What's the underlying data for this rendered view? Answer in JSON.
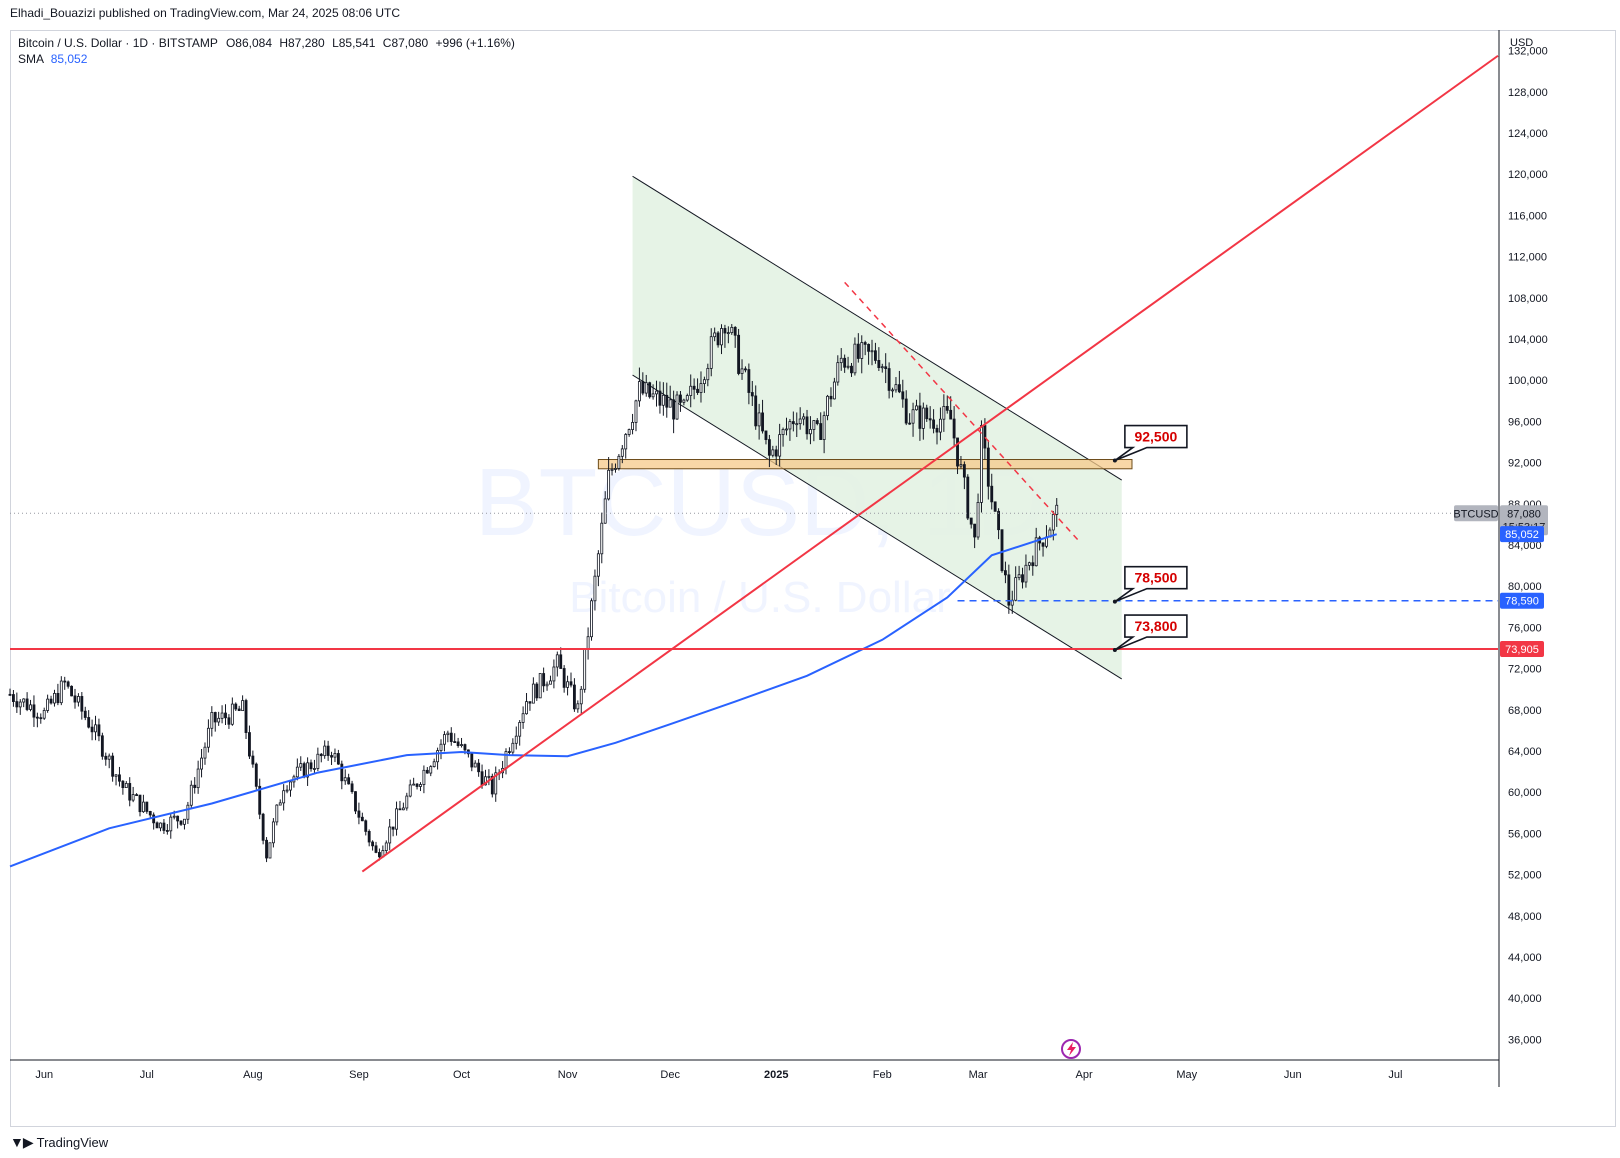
{
  "header": {
    "published": "Elhadi_Bouazizi published on TradingView.com, Mar 24, 2025 08:06 UTC"
  },
  "legend": {
    "symbol": "Bitcoin / U.S. Dollar · 1D · BITSTAMP",
    "open": "O86,084",
    "high": "H87,280",
    "low": "L85,541",
    "close": "C87,080",
    "change": "+996 (+1.16%)",
    "sma_label": "SMA",
    "sma_value": "85,052"
  },
  "watermark": {
    "line1": "BTCUSD, 1D",
    "line2": "Bitcoin / U.S. Dollar"
  },
  "footer": {
    "brand": "TradingView"
  },
  "colors": {
    "bull": "#131722",
    "bear": "#131722",
    "sma": "#2962ff",
    "trend_red": "#f23645",
    "channel_fill": "#e3f2e3",
    "zone": "#f5c98a"
  },
  "chart_data": {
    "type": "candlestick",
    "currency": "USD",
    "timeframe": "1D",
    "x_range": [
      "2024-05-22",
      "2025-07-31"
    ],
    "y_range": [
      34000,
      134000
    ],
    "x_ticks": [
      {
        "label": "Jun",
        "date": "2024-06-01"
      },
      {
        "label": "Jul",
        "date": "2024-07-01"
      },
      {
        "label": "Aug",
        "date": "2024-08-01"
      },
      {
        "label": "Sep",
        "date": "2024-09-01"
      },
      {
        "label": "Oct",
        "date": "2024-10-01"
      },
      {
        "label": "Nov",
        "date": "2024-11-01"
      },
      {
        "label": "Dec",
        "date": "2024-12-01"
      },
      {
        "label": "2025",
        "date": "2025-01-01"
      },
      {
        "label": "Feb",
        "date": "2025-02-01"
      },
      {
        "label": "Mar",
        "date": "2025-03-01"
      },
      {
        "label": "Apr",
        "date": "2025-04-01"
      },
      {
        "label": "May",
        "date": "2025-05-01"
      },
      {
        "label": "Jun",
        "date": "2025-06-01"
      },
      {
        "label": "Jul",
        "date": "2025-07-01"
      }
    ],
    "y_ticks": [
      {
        "label": "132,000",
        "value": 132000
      },
      {
        "label": "128,000",
        "value": 128000
      },
      {
        "label": "124,000",
        "value": 124000
      },
      {
        "label": "120,000",
        "value": 120000
      },
      {
        "label": "116,000",
        "value": 116000
      },
      {
        "label": "112,000",
        "value": 112000
      },
      {
        "label": "108,000",
        "value": 108000
      },
      {
        "label": "104,000",
        "value": 104000
      },
      {
        "label": "100,000",
        "value": 100000
      },
      {
        "label": "96,000",
        "value": 96000
      },
      {
        "label": "92,000",
        "value": 92000
      },
      {
        "label": "88,000",
        "value": 88000
      },
      {
        "label": "84,000",
        "value": 84000
      },
      {
        "label": "80,000",
        "value": 80000
      },
      {
        "label": "76,000",
        "value": 76000
      },
      {
        "label": "72,000",
        "value": 72000
      },
      {
        "label": "68,000",
        "value": 68000
      },
      {
        "label": "64,000",
        "value": 64000
      },
      {
        "label": "60,000",
        "value": 60000
      },
      {
        "label": "56,000",
        "value": 56000
      },
      {
        "label": "52,000",
        "value": 52000
      },
      {
        "label": "48,000",
        "value": 48000
      },
      {
        "label": "44,000",
        "value": 44000
      },
      {
        "label": "40,000",
        "value": 40000
      },
      {
        "label": "36,000",
        "value": 36000
      }
    ],
    "close_path": [
      [
        "2024-05-22",
        69500
      ],
      [
        "2024-06-01",
        67600
      ],
      [
        "2024-06-07",
        70500
      ],
      [
        "2024-06-15",
        66300
      ],
      [
        "2024-06-24",
        60500
      ],
      [
        "2024-07-05",
        56800
      ],
      [
        "2024-07-12",
        57700
      ],
      [
        "2024-07-20",
        66800
      ],
      [
        "2024-07-29",
        68000
      ],
      [
        "2024-08-05",
        54000
      ],
      [
        "2024-08-10",
        60800
      ],
      [
        "2024-08-24",
        64100
      ],
      [
        "2024-09-06",
        53900
      ],
      [
        "2024-09-15",
        59400
      ],
      [
        "2024-09-27",
        65800
      ],
      [
        "2024-10-10",
        60300
      ],
      [
        "2024-10-20",
        69000
      ],
      [
        "2024-10-29",
        72400
      ],
      [
        "2024-11-04",
        68000
      ],
      [
        "2024-11-13",
        90500
      ],
      [
        "2024-11-22",
        98900
      ],
      [
        "2024-12-05",
        96900
      ],
      [
        "2024-12-17",
        106100
      ],
      [
        "2024-12-30",
        92500
      ],
      [
        "2025-01-07",
        96900
      ],
      [
        "2025-01-13",
        94500
      ],
      [
        "2025-01-20",
        102000
      ],
      [
        "2025-01-31",
        102400
      ],
      [
        "2025-02-09",
        96500
      ],
      [
        "2025-02-21",
        96200
      ],
      [
        "2025-02-28",
        84300
      ],
      [
        "2025-03-02",
        94300
      ],
      [
        "2025-03-10",
        78500
      ],
      [
        "2025-03-16",
        82600
      ],
      [
        "2025-03-24",
        87080
      ]
    ],
    "sma": {
      "name": "SMA",
      "value": 85052,
      "points": [
        [
          "2024-05-22",
          52800
        ],
        [
          "2024-06-20",
          56500
        ],
        [
          "2024-07-20",
          58900
        ],
        [
          "2024-08-20",
          61900
        ],
        [
          "2024-09-15",
          63600
        ],
        [
          "2024-10-01",
          63900
        ],
        [
          "2024-10-15",
          63600
        ],
        [
          "2024-11-01",
          63500
        ],
        [
          "2024-11-15",
          64800
        ],
        [
          "2024-12-01",
          66600
        ],
        [
          "2024-12-20",
          68800
        ],
        [
          "2025-01-10",
          71300
        ],
        [
          "2025-02-01",
          74800
        ],
        [
          "2025-02-20",
          78900
        ],
        [
          "2025-03-05",
          83000
        ],
        [
          "2025-03-24",
          85052
        ]
      ]
    },
    "annotations": {
      "channel_upper": {
        "start": [
          "2024-11-20",
          119800
        ],
        "end": [
          "2025-04-12",
          90300
        ]
      },
      "channel_lower": {
        "start": [
          "2024-11-20",
          100500
        ],
        "end": [
          "2025-04-12",
          71000
        ]
      },
      "dashed_trend": {
        "start": [
          "2025-01-21",
          109500
        ],
        "end": [
          "2025-03-31",
          84200
        ]
      },
      "rising_trend": {
        "start": [
          "2024-09-02",
          52300
        ],
        "end": [
          "2025-07-31",
          131500
        ]
      },
      "support_zone": {
        "from": "2024-11-10",
        "to": "2025-04-15",
        "low": 91400,
        "high": 92300
      },
      "hline_red": {
        "value": 73905,
        "label": "73,905"
      },
      "hline_blue_dashed": {
        "value": 78590,
        "label": "78,590",
        "from": "2025-02-23"
      },
      "callouts": [
        {
          "label": "92,500",
          "value": 92500,
          "anchor": [
            "2025-04-10",
            92200
          ]
        },
        {
          "label": "78,500",
          "value": 78500,
          "anchor": [
            "2025-04-10",
            78500
          ]
        },
        {
          "label": "73,800",
          "value": 73800,
          "anchor": [
            "2025-04-10",
            73800
          ]
        }
      ]
    },
    "price_labels": {
      "symbol_tag": "BTCUSD",
      "last": "87,080",
      "countdown": "15:53:17",
      "sma": "85,052",
      "blue_line": "78,590",
      "red_line": "73,905"
    },
    "grid": false
  }
}
